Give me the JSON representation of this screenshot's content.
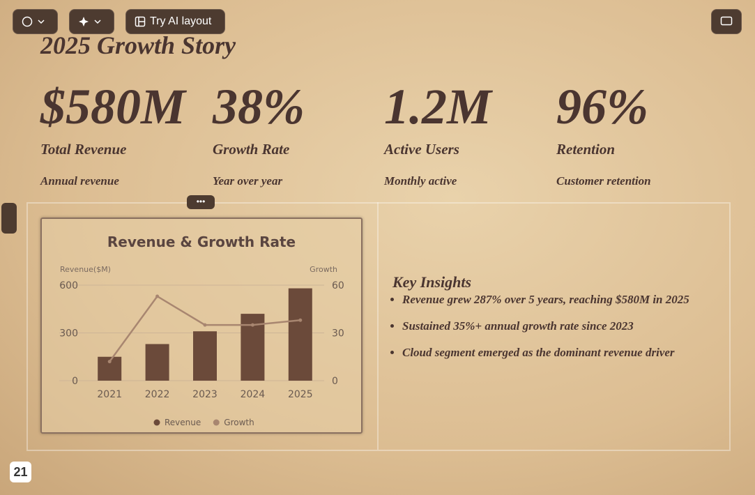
{
  "toolbar": {
    "ai_layout": "Try AI layout"
  },
  "slide": {
    "title": "2025 Growth Story",
    "stats": [
      {
        "value": "$580M",
        "label": "Total Revenue",
        "note": "Annual revenue"
      },
      {
        "value": "38%",
        "label": "Growth Rate",
        "note": "Year over year"
      },
      {
        "value": "1.2M",
        "label": "Active Users",
        "note": "Monthly active"
      },
      {
        "value": "96%",
        "label": "Retention",
        "note": "Customer retention"
      }
    ],
    "insights": {
      "title": "Key Insights",
      "items": [
        "Revenue grew 287% over 5 years, reaching $580M in 2025",
        "Sustained 35%+ annual growth rate since 2023",
        "Cloud segment emerged as the dominant revenue driver"
      ]
    },
    "page_number": 21
  },
  "chart_data": {
    "type": "bar",
    "title": "Revenue & Growth Rate",
    "y_label": "Revenue($M)",
    "y2_label": "Growth",
    "categories": [
      "2021",
      "2022",
      "2023",
      "2024",
      "2025"
    ],
    "series": [
      {
        "name": "Revenue",
        "type": "bar",
        "color": "#6b4a3a",
        "values": [
          150,
          230,
          310,
          420,
          580
        ]
      },
      {
        "name": "Growth",
        "type": "line",
        "axis": "y2",
        "color": "#a88670",
        "values": [
          12,
          53,
          35,
          35,
          38
        ]
      }
    ],
    "ylim": [
      0,
      600
    ],
    "yticks": [
      0,
      300,
      600
    ],
    "y2lim": [
      0,
      60
    ],
    "y2ticks": [
      0,
      30,
      60
    ],
    "grid": true
  }
}
